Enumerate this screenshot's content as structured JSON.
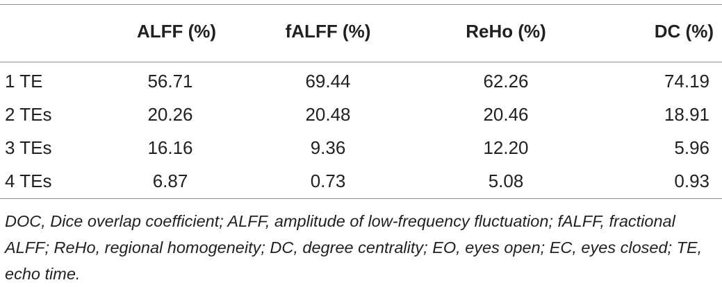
{
  "table": {
    "columns": [
      "",
      "ALFF (%)",
      "fALFF (%)",
      "ReHo (%)",
      "DC (%)"
    ],
    "rows": [
      {
        "label": "1 TE",
        "values": [
          "56.71",
          "69.44",
          "62.26",
          "74.19"
        ]
      },
      {
        "label": "2 TEs",
        "values": [
          "20.26",
          "20.48",
          "20.46",
          "18.91"
        ]
      },
      {
        "label": "3 TEs",
        "values": [
          "16.16",
          "9.36",
          "12.20",
          "5.96"
        ]
      },
      {
        "label": "4 TEs",
        "values": [
          "6.87",
          "0.73",
          "5.08",
          "0.93"
        ]
      }
    ]
  },
  "footnote": "DOC, Dice overlap coefficient; ALFF, amplitude of low-frequency fluctuation; fALFF, fractional ALFF; ReHo, regional homogeneity; DC, degree centrality; EO, eyes open; EC, eyes closed; TE, echo time."
}
